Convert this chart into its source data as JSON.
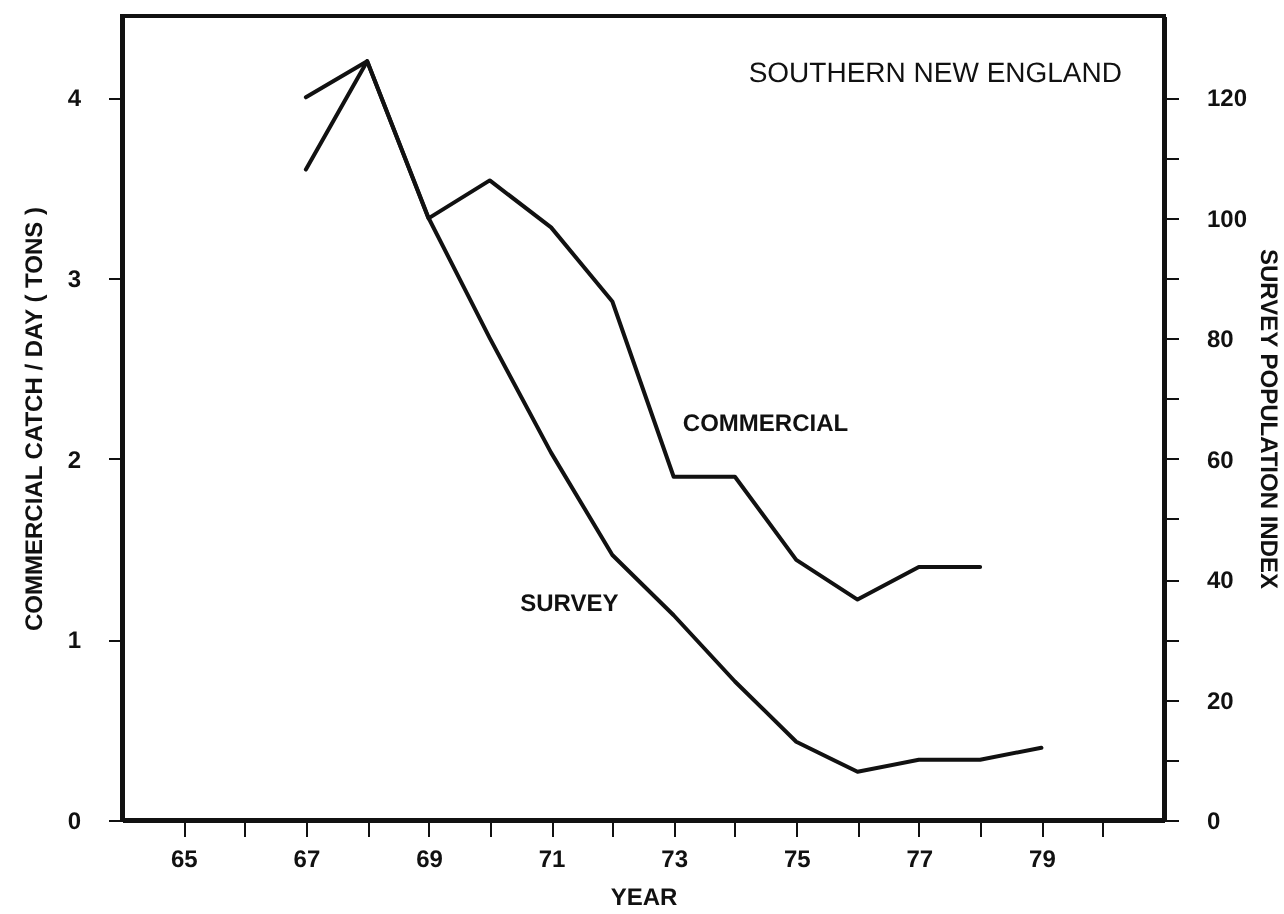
{
  "chart_data": {
    "type": "line",
    "title": "SOUTHERN NEW ENGLAND",
    "xlabel": "YEAR",
    "ylabel": "COMMERCIAL CATCH / DAY ( TONS )",
    "y2label": "SURVEY POPULATION INDEX",
    "x": [
      67,
      68,
      69,
      70,
      71,
      72,
      73,
      74,
      75,
      76,
      77,
      78,
      79
    ],
    "series": [
      {
        "name": "COMMERCIAL",
        "color": "#111111",
        "values": [
          4.0,
          4.2,
          3.33,
          3.54,
          3.28,
          2.87,
          1.9,
          1.9,
          1.44,
          1.22,
          1.4,
          1.4,
          null
        ]
      },
      {
        "name": "SURVEY",
        "color": "#111111",
        "axis": "y2",
        "values": [
          108,
          126,
          100,
          80,
          61,
          44,
          34,
          23,
          13,
          8,
          10,
          10,
          12
        ]
      }
    ],
    "xlim": [
      64,
      81
    ],
    "xticks": [
      {
        "value": 65,
        "label": "65"
      },
      {
        "value": 66,
        "label": null
      },
      {
        "value": 67,
        "label": "67"
      },
      {
        "value": 68,
        "label": null
      },
      {
        "value": 69,
        "label": "69"
      },
      {
        "value": 70,
        "label": null
      },
      {
        "value": 71,
        "label": "71"
      },
      {
        "value": 72,
        "label": null
      },
      {
        "value": 73,
        "label": "73"
      },
      {
        "value": 74,
        "label": null
      },
      {
        "value": 75,
        "label": "75"
      },
      {
        "value": 76,
        "label": null
      },
      {
        "value": 77,
        "label": "77"
      },
      {
        "value": 78,
        "label": null
      },
      {
        "value": 79,
        "label": "79"
      },
      {
        "value": 80,
        "label": null
      }
    ],
    "ylim": [
      0,
      4.45
    ],
    "yticks": [
      0,
      1,
      2,
      3,
      4
    ],
    "y2lim": [
      0,
      133.5
    ],
    "y2ticks": [
      0,
      {
        "value": 10,
        "label": null
      },
      20,
      {
        "value": 30,
        "label": null
      },
      40,
      {
        "value": 50,
        "label": null
      },
      60,
      {
        "value": 70,
        "label": null
      },
      80,
      {
        "value": 90,
        "label": null
      },
      100,
      {
        "value": 110,
        "label": null
      },
      120
    ],
    "marker": "none",
    "line_style": "solid"
  }
}
